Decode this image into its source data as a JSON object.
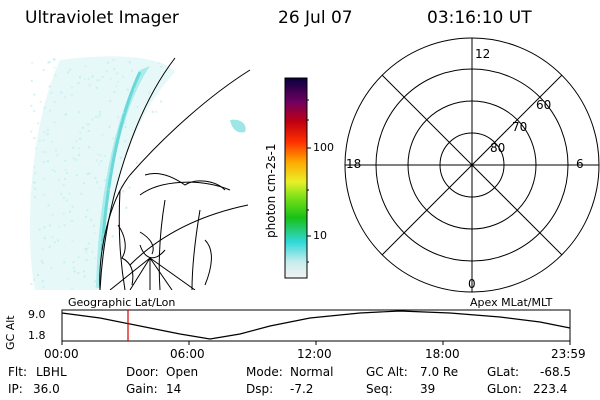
{
  "header": {
    "instrument": "Ultraviolet Imager",
    "date": "26 Jul 07",
    "time": "03:16:10 UT"
  },
  "colorbar": {
    "unit_label": "photon cm-2s-1",
    "ticks": [
      "100",
      "10"
    ],
    "scale": "log"
  },
  "polar_plot": {
    "mlt_labels": [
      "12",
      "18",
      "6",
      "0"
    ],
    "lat_labels": [
      "60",
      "70",
      "80"
    ]
  },
  "altitude_strip": {
    "ylabel": "GC Alt",
    "y_ticks": [
      "9.0",
      "1.8"
    ],
    "left_caption": "Geographic Lat/Lon",
    "right_caption": "Apex MLat/MLT",
    "x_ticks": [
      "00:00",
      "06:00",
      "12:00",
      "18:00",
      "23:59"
    ],
    "marker_color": "#d40000"
  },
  "footer": {
    "rows": [
      [
        {
          "label": "Flt:",
          "value": "LBHL"
        },
        {
          "label": "Door:",
          "value": "Open"
        },
        {
          "label": "Mode:",
          "value": "Normal"
        },
        {
          "label": "GC Alt:",
          "value": "7.0 Re"
        },
        {
          "label": "GLat:",
          "value": "-68.5"
        }
      ],
      [
        {
          "label": "IP:",
          "value": "36.0"
        },
        {
          "label": "Gain:",
          "value": "14"
        },
        {
          "label": "Dsp:",
          "value": "-7.2"
        },
        {
          "label": "Seq:",
          "value": "39"
        },
        {
          "label": "GLon:",
          "value": "223.4"
        }
      ]
    ]
  }
}
